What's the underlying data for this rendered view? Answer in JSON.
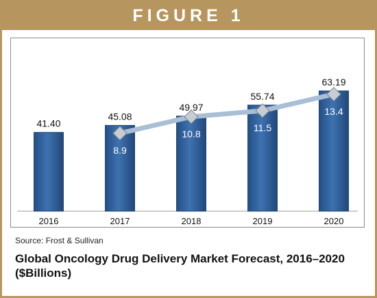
{
  "figure": {
    "banner": "FIGURE 1",
    "source": "Source: Frost & Sullivan",
    "caption": "Global Oncology Drug Delivery Market Forecast, 2016–2020 ($Billions)"
  },
  "colors": {
    "frame": "#b6955f",
    "bar": "#2f5f98",
    "bar_edge": "#1f4779",
    "line": "#a9bfd6",
    "marker": "#c9ccd2"
  },
  "chart_data": {
    "type": "bar",
    "categories": [
      "2016",
      "2017",
      "2018",
      "2019",
      "2020"
    ],
    "series": [
      {
        "type": "bar",
        "values": [
          41.4,
          45.08,
          49.97,
          55.74,
          63.19
        ]
      },
      {
        "type": "line",
        "x": [
          "2017",
          "2018",
          "2019",
          "2020"
        ],
        "values": [
          8.9,
          10.8,
          11.5,
          13.4
        ]
      }
    ],
    "bar_labels": [
      "41.40",
      "45.08",
      "49.97",
      "55.74",
      "63.19"
    ],
    "line_labels": [
      "8.9",
      "10.8",
      "11.5",
      "13.4"
    ],
    "grid": false,
    "legend": "none"
  }
}
